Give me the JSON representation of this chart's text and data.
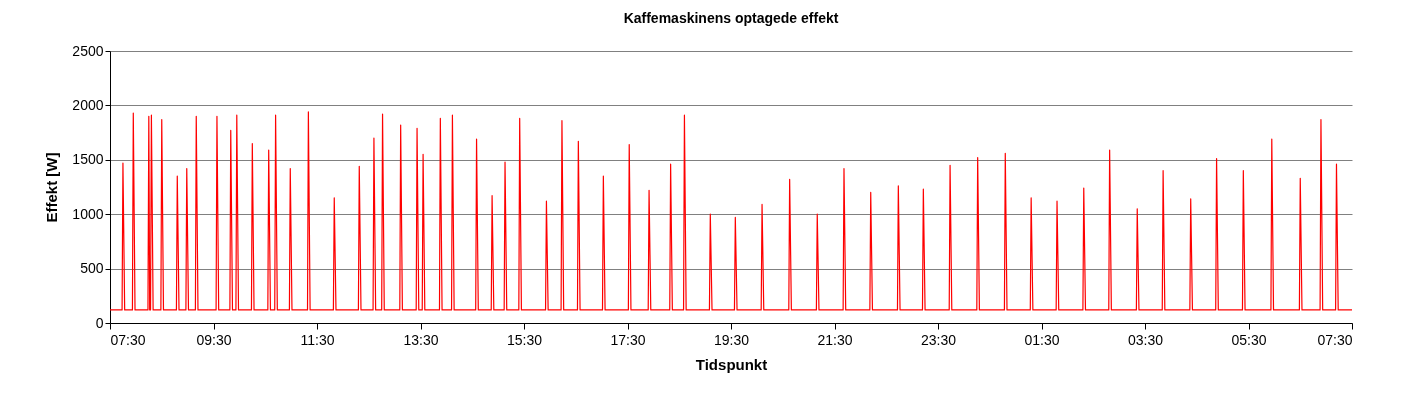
{
  "chart_data": {
    "type": "line",
    "title": "Kaffemaskinens optagede effekt",
    "xlabel": "Tidspunkt",
    "ylabel": "Effekt [W]",
    "x": [
      "2000-01-01T07:30",
      "2000-01-01T07:44",
      "2000-01-01T07:45",
      "2000-01-01T07:47",
      "2000-01-01T07:56",
      "2000-01-01T07:57",
      "2000-01-01T07:59",
      "2000-01-01T08:14",
      "2000-01-01T08:15",
      "2000-01-01T08:16",
      "2000-01-01T08:17",
      "2000-01-01T08:18",
      "2000-01-01T08:20",
      "2000-01-01T08:29",
      "2000-01-01T08:30",
      "2000-01-01T08:32",
      "2000-01-01T08:47",
      "2000-01-01T08:48",
      "2000-01-01T08:50",
      "2000-01-01T08:58",
      "2000-01-01T08:59",
      "2000-01-01T09:01",
      "2000-01-01T09:09",
      "2000-01-01T09:10",
      "2000-01-01T09:12",
      "2000-01-01T09:33",
      "2000-01-01T09:34",
      "2000-01-01T09:36",
      "2000-01-01T09:49",
      "2000-01-01T09:50",
      "2000-01-01T09:52",
      "2000-01-01T09:56",
      "2000-01-01T09:57",
      "2000-01-01T09:59",
      "2000-01-01T10:14",
      "2000-01-01T10:15",
      "2000-01-01T10:17",
      "2000-01-01T10:33",
      "2000-01-01T10:34",
      "2000-01-01T10:36",
      "2000-01-01T10:41",
      "2000-01-01T10:42",
      "2000-01-01T10:44",
      "2000-01-01T10:58",
      "2000-01-01T10:59",
      "2000-01-01T11:01",
      "2000-01-01T11:19",
      "2000-01-01T11:20",
      "2000-01-01T11:22",
      "2000-01-01T11:49",
      "2000-01-01T11:50",
      "2000-01-01T11:52",
      "2000-01-01T12:18",
      "2000-01-01T12:19",
      "2000-01-01T12:21",
      "2000-01-01T12:35",
      "2000-01-01T12:36",
      "2000-01-01T12:38",
      "2000-01-01T12:45",
      "2000-01-01T12:46",
      "2000-01-01T12:48",
      "2000-01-01T13:06",
      "2000-01-01T13:07",
      "2000-01-01T13:09",
      "2000-01-01T13:25",
      "2000-01-01T13:26",
      "2000-01-01T13:28",
      "2000-01-01T13:32",
      "2000-01-01T13:33",
      "2000-01-01T13:35",
      "2000-01-01T13:52",
      "2000-01-01T13:53",
      "2000-01-01T13:55",
      "2000-01-01T14:06",
      "2000-01-01T14:07",
      "2000-01-01T14:09",
      "2000-01-01T14:34",
      "2000-01-01T14:35",
      "2000-01-01T14:37",
      "2000-01-01T14:52",
      "2000-01-01T14:53",
      "2000-01-01T14:55",
      "2000-01-01T15:07",
      "2000-01-01T15:08",
      "2000-01-01T15:10",
      "2000-01-01T15:24",
      "2000-01-01T15:25",
      "2000-01-01T15:27",
      "2000-01-01T15:55",
      "2000-01-01T15:56",
      "2000-01-01T15:58",
      "2000-01-01T16:13",
      "2000-01-01T16:14",
      "2000-01-01T16:16",
      "2000-01-01T16:32",
      "2000-01-01T16:33",
      "2000-01-01T16:35",
      "2000-01-01T17:01",
      "2000-01-01T17:02",
      "2000-01-01T17:04",
      "2000-01-01T17:31",
      "2000-01-01T17:32",
      "2000-01-01T17:34",
      "2000-01-01T17:54",
      "2000-01-01T17:55",
      "2000-01-01T17:57",
      "2000-01-01T18:19",
      "2000-01-01T18:20",
      "2000-01-01T18:22",
      "2000-01-01T18:35",
      "2000-01-01T18:36",
      "2000-01-01T18:38",
      "2000-01-01T19:05",
      "2000-01-01T19:06",
      "2000-01-01T19:08",
      "2000-01-01T19:34",
      "2000-01-01T19:35",
      "2000-01-01T19:37",
      "2000-01-01T20:05",
      "2000-01-01T20:06",
      "2000-01-01T20:08",
      "2000-01-01T20:37",
      "2000-01-01T20:38",
      "2000-01-01T20:40",
      "2000-01-01T21:09",
      "2000-01-01T21:10",
      "2000-01-01T21:12",
      "2000-01-01T21:40",
      "2000-01-01T21:41",
      "2000-01-01T21:43",
      "2000-01-01T22:11",
      "2000-01-01T22:12",
      "2000-01-01T22:14",
      "2000-01-01T22:43",
      "2000-01-01T22:44",
      "2000-01-01T22:46",
      "2000-01-01T23:12",
      "2000-01-01T23:13",
      "2000-01-01T23:15",
      "2000-01-01T23:43",
      "2000-01-01T23:44",
      "2000-01-01T23:46",
      "2000-01-02T00:15",
      "2000-01-02T00:16",
      "2000-01-02T00:18",
      "2000-01-02T00:47",
      "2000-01-02T00:48",
      "2000-01-02T00:50",
      "2000-01-02T01:17",
      "2000-01-02T01:18",
      "2000-01-02T01:20",
      "2000-01-02T01:47",
      "2000-01-02T01:48",
      "2000-01-02T01:50",
      "2000-01-02T02:18",
      "2000-01-02T02:19",
      "2000-01-02T02:21",
      "2000-01-02T02:48",
      "2000-01-02T02:49",
      "2000-01-02T02:51",
      "2000-01-02T03:20",
      "2000-01-02T03:21",
      "2000-01-02T03:23",
      "2000-01-02T03:50",
      "2000-01-02T03:51",
      "2000-01-02T03:53",
      "2000-01-02T04:22",
      "2000-01-02T04:23",
      "2000-01-02T04:25",
      "2000-01-02T04:52",
      "2000-01-02T04:53",
      "2000-01-02T04:55",
      "2000-01-02T05:23",
      "2000-01-02T05:24",
      "2000-01-02T05:26",
      "2000-01-02T05:56",
      "2000-01-02T05:57",
      "2000-01-02T05:59",
      "2000-01-02T06:29",
      "2000-01-02T06:30",
      "2000-01-02T06:32",
      "2000-01-02T06:53",
      "2000-01-02T06:54",
      "2000-01-02T06:56",
      "2000-01-02T07:11",
      "2000-01-02T07:12",
      "2000-01-02T07:14",
      "2000-01-02T07:30"
    ],
    "series": [
      {
        "color": "#ff0000",
        "values": [
          120,
          120,
          1470,
          120,
          120,
          1930,
          120,
          120,
          1900,
          120,
          120,
          1910,
          120,
          120,
          1870,
          120,
          120,
          1350,
          120,
          120,
          1420,
          120,
          120,
          1900,
          120,
          120,
          1900,
          120,
          120,
          1770,
          120,
          120,
          1910,
          120,
          120,
          1650,
          120,
          120,
          1590,
          120,
          120,
          1910,
          120,
          120,
          1420,
          120,
          120,
          1940,
          120,
          120,
          1150,
          120,
          120,
          1440,
          120,
          120,
          1700,
          120,
          120,
          1920,
          120,
          120,
          1820,
          120,
          120,
          1790,
          120,
          120,
          1550,
          120,
          120,
          1880,
          120,
          120,
          1910,
          120,
          120,
          1690,
          120,
          120,
          1170,
          120,
          120,
          1480,
          120,
          120,
          1880,
          120,
          120,
          1120,
          120,
          120,
          1860,
          120,
          120,
          1670,
          120,
          120,
          1350,
          120,
          120,
          1640,
          120,
          120,
          1220,
          120,
          120,
          1460,
          120,
          120,
          1910,
          120,
          120,
          1000,
          120,
          120,
          970,
          120,
          120,
          1090,
          120,
          120,
          1320,
          120,
          120,
          1000,
          120,
          120,
          1420,
          120,
          120,
          1200,
          120,
          120,
          1260,
          120,
          120,
          1230,
          120,
          120,
          1450,
          120,
          120,
          1520,
          120,
          120,
          1560,
          120,
          120,
          1150,
          120,
          120,
          1120,
          120,
          120,
          1240,
          120,
          120,
          1590,
          120,
          120,
          1050,
          120,
          120,
          1400,
          120,
          120,
          1140,
          120,
          120,
          1510,
          120,
          120,
          1400,
          120,
          120,
          1690,
          120,
          120,
          1330,
          120,
          120,
          1870,
          120,
          120,
          1460,
          120,
          120
        ]
      }
    ],
    "xlim": [
      "2000-01-01T07:30",
      "2000-01-02T07:30"
    ],
    "xticks": [
      {
        "value": "2000-01-01T07:30",
        "label": "07:30"
      },
      {
        "value": "2000-01-01T09:30",
        "label": "09:30"
      },
      {
        "value": "2000-01-01T11:30",
        "label": "11:30"
      },
      {
        "value": "2000-01-01T13:30",
        "label": "13:30"
      },
      {
        "value": "2000-01-01T15:30",
        "label": "15:30"
      },
      {
        "value": "2000-01-01T17:30",
        "label": "17:30"
      },
      {
        "value": "2000-01-01T19:30",
        "label": "19:30"
      },
      {
        "value": "2000-01-01T21:30",
        "label": "21:30"
      },
      {
        "value": "2000-01-01T23:30",
        "label": "23:30"
      },
      {
        "value": "2000-01-02T01:30",
        "label": "01:30"
      },
      {
        "value": "2000-01-02T03:30",
        "label": "03:30"
      },
      {
        "value": "2000-01-02T05:30",
        "label": "05:30"
      },
      {
        "value": "2000-01-02T07:30",
        "label": "07:30"
      }
    ],
    "ylim": [
      0,
      2500
    ],
    "yticks": [
      0,
      500,
      1000,
      1500,
      2000,
      2500
    ],
    "grid": "y"
  }
}
